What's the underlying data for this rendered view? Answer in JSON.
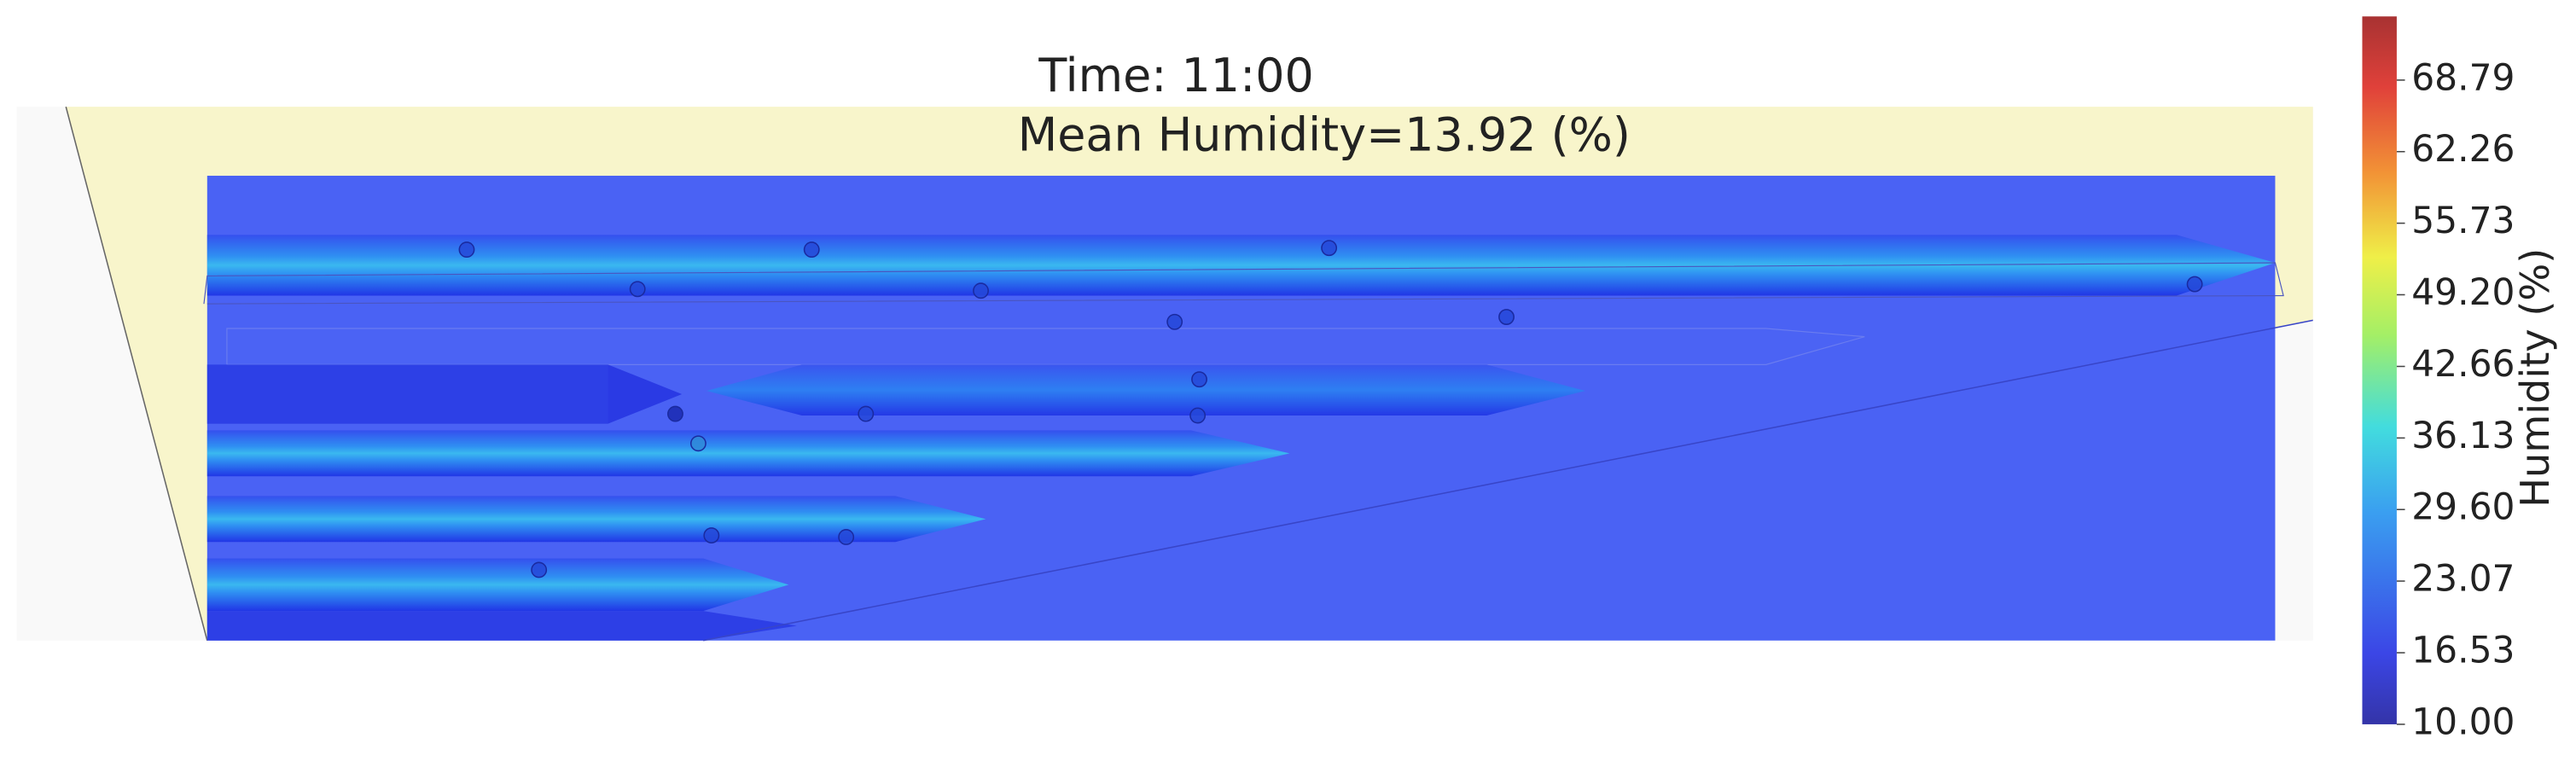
{
  "chart_data": {
    "type": "contour",
    "title": "Time: 11:00",
    "subtitle": "Mean Humidity=13.92 (%)",
    "colorbar": {
      "label": "Humidity (%)",
      "lim": [
        10,
        74.6
      ],
      "ticks": [
        {
          "value": 10,
          "label": "10.00"
        },
        16.53,
        23.07,
        {
          "value": 29.6,
          "label": "29.60"
        },
        36.13,
        42.66,
        {
          "value": 49.2,
          "label": "49.20"
        },
        55.73,
        62.26,
        68.79
      ]
    }
  }
}
